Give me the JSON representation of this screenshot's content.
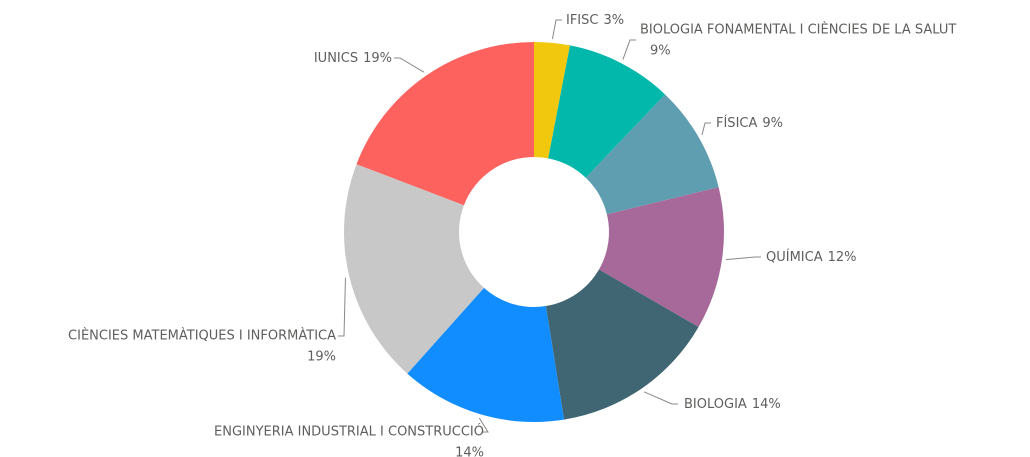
{
  "chart_data": {
    "type": "donut",
    "categories": [
      "IFISC",
      "BIOLOGIA FONAMENTAL I CIÈNCIES DE LA SALUT",
      "FÍSICA",
      "QUÍMICA",
      "BIOLOGIA",
      "ENGINYERIA INDUSTRIAL I CONSTRUCCIÓ",
      "CIÈNCIES MATEMÀTIQUES I INFORMÀTICA",
      "IUNICS"
    ],
    "values": [
      3,
      9,
      9,
      12,
      14,
      14,
      19,
      19
    ],
    "value_labels": [
      "3%",
      "9%",
      "9%",
      "12%",
      "14%",
      "14%",
      "19%",
      "19%"
    ],
    "colors": [
      "#f2c80f",
      "#01b8aa",
      "#5f9eb1",
      "#a66999",
      "#3f6672",
      "#118dff",
      "#c8c8c8",
      "#fd625e"
    ]
  }
}
